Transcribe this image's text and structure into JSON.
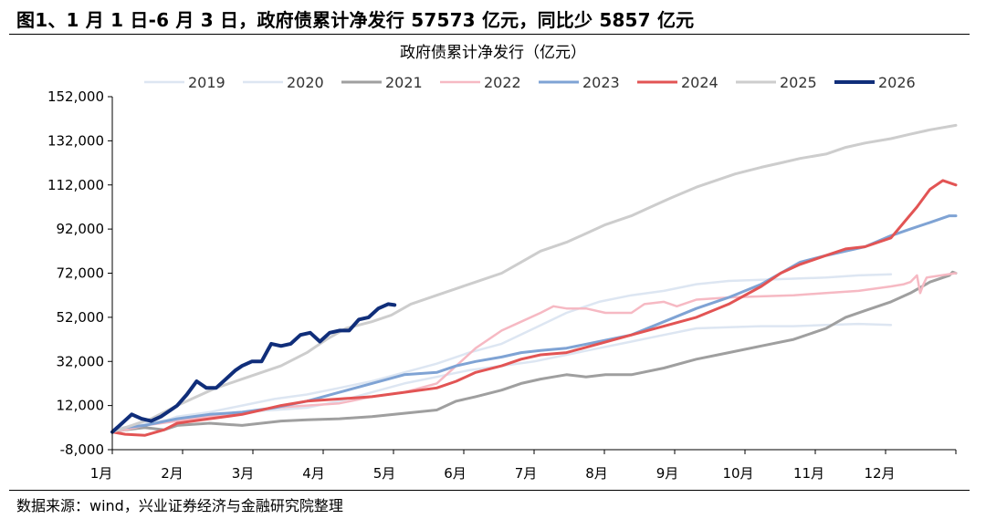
{
  "figure": {
    "title": "图1、1 月 1 日-6 月 3 日，政府债累计净发行 57573 亿元，同比少 5857 亿元",
    "source": "数据来源：wind，兴业证券经济与金融研究院整理"
  },
  "chart_data": {
    "type": "line",
    "title": "政府债累计净发行（亿元）",
    "xlabel": "",
    "ylabel": "",
    "x_tick_labels": [
      "1月",
      "2月",
      "3月",
      "4月",
      "5月",
      "6月",
      "7月",
      "8月",
      "9月",
      "10月",
      "11月",
      "12月"
    ],
    "x_range_months": [
      0,
      12
    ],
    "ylim": [
      -8000,
      152000
    ],
    "y_ticks": [
      -8000,
      12000,
      32000,
      52000,
      72000,
      92000,
      112000,
      132000,
      152000
    ],
    "y_tick_labels": [
      "-8,000",
      "12,000",
      "32,000",
      "52,000",
      "72,000",
      "92,000",
      "112,000",
      "132,000",
      "152,000"
    ],
    "grid": false,
    "legend_position": "top",
    "series": [
      {
        "name": "2019",
        "color": "#dde6f2",
        "width": 2.5,
        "points": [
          [
            0.0,
            0
          ],
          [
            0.15,
            2000
          ],
          [
            0.5,
            3000
          ],
          [
            0.8,
            5000
          ],
          [
            1.0,
            7000
          ],
          [
            1.5,
            9000
          ],
          [
            2.0,
            12000
          ],
          [
            2.5,
            15000
          ],
          [
            3.0,
            17000
          ],
          [
            3.5,
            20000
          ],
          [
            4.0,
            23000
          ],
          [
            4.5,
            27000
          ],
          [
            5.0,
            31000
          ],
          [
            5.5,
            36000
          ],
          [
            6.0,
            40000
          ],
          [
            6.5,
            47000
          ],
          [
            7.0,
            54000
          ],
          [
            7.5,
            59000
          ],
          [
            8.0,
            62000
          ],
          [
            8.5,
            64000
          ],
          [
            9.0,
            67000
          ],
          [
            9.5,
            68500
          ],
          [
            10.0,
            69000
          ],
          [
            10.5,
            69500
          ],
          [
            11.0,
            70000
          ],
          [
            11.5,
            71000
          ],
          [
            12.0,
            71500
          ]
        ]
      },
      {
        "name": "2020",
        "color": "#dde6f2",
        "width": 2.5,
        "points": [
          [
            0.0,
            0
          ],
          [
            0.2,
            2000
          ],
          [
            0.5,
            4000
          ],
          [
            1.0,
            6000
          ],
          [
            1.5,
            7000
          ],
          [
            2.0,
            9000
          ],
          [
            2.5,
            10000
          ],
          [
            3.0,
            11000
          ],
          [
            3.5,
            14000
          ],
          [
            4.0,
            18000
          ],
          [
            4.5,
            22000
          ],
          [
            5.0,
            25000
          ],
          [
            5.5,
            28000
          ],
          [
            6.0,
            30000
          ],
          [
            6.5,
            32000
          ],
          [
            7.0,
            35000
          ],
          [
            7.5,
            38000
          ],
          [
            8.0,
            41000
          ],
          [
            8.5,
            44000
          ],
          [
            9.0,
            47000
          ],
          [
            9.5,
            47500
          ],
          [
            10.0,
            48000
          ],
          [
            10.5,
            48000
          ],
          [
            11.0,
            48500
          ],
          [
            11.5,
            49000
          ],
          [
            12.0,
            48500
          ]
        ]
      },
      {
        "name": "2021",
        "color": "#9f9f9f",
        "width": 3,
        "points": [
          [
            0.0,
            0
          ],
          [
            0.2,
            1000
          ],
          [
            0.5,
            2000
          ],
          [
            0.8,
            1000
          ],
          [
            1.0,
            3000
          ],
          [
            1.5,
            4000
          ],
          [
            2.0,
            3000
          ],
          [
            2.3,
            4000
          ],
          [
            2.6,
            5000
          ],
          [
            3.0,
            5500
          ],
          [
            3.5,
            6000
          ],
          [
            4.0,
            7000
          ],
          [
            4.5,
            8500
          ],
          [
            5.0,
            10000
          ],
          [
            5.3,
            14000
          ],
          [
            5.6,
            16000
          ],
          [
            6.0,
            19000
          ],
          [
            6.3,
            22000
          ],
          [
            6.6,
            24000
          ],
          [
            6.8,
            25000
          ],
          [
            7.0,
            26000
          ],
          [
            7.3,
            25000
          ],
          [
            7.6,
            26000
          ],
          [
            8.0,
            26000
          ],
          [
            8.5,
            29000
          ],
          [
            9.0,
            33000
          ],
          [
            9.5,
            36000
          ],
          [
            10.0,
            39000
          ],
          [
            10.5,
            42000
          ],
          [
            11.0,
            47000
          ],
          [
            11.3,
            52000
          ],
          [
            11.6,
            55000
          ],
          [
            12.0,
            59000
          ],
          [
            12.3,
            63000
          ],
          [
            12.6,
            68000
          ],
          [
            12.9,
            71000
          ],
          [
            12.95,
            72500
          ],
          [
            13.0,
            72000
          ]
        ]
      },
      {
        "name": "2022",
        "color": "#f6b9c3",
        "width": 2.5,
        "points": [
          [
            0.0,
            0
          ],
          [
            0.2,
            1000
          ],
          [
            0.5,
            3000
          ],
          [
            1.0,
            5000
          ],
          [
            1.5,
            7000
          ],
          [
            2.0,
            9000
          ],
          [
            2.5,
            11000
          ],
          [
            3.0,
            12000
          ],
          [
            3.5,
            13000
          ],
          [
            4.0,
            16000
          ],
          [
            4.5,
            18000
          ],
          [
            5.0,
            22000
          ],
          [
            5.3,
            30000
          ],
          [
            5.6,
            38000
          ],
          [
            6.0,
            46000
          ],
          [
            6.3,
            50000
          ],
          [
            6.6,
            54000
          ],
          [
            6.8,
            57000
          ],
          [
            7.0,
            56000
          ],
          [
            7.3,
            56000
          ],
          [
            7.6,
            54000
          ],
          [
            8.0,
            54000
          ],
          [
            8.2,
            58000
          ],
          [
            8.5,
            59000
          ],
          [
            8.7,
            57000
          ],
          [
            9.0,
            60000
          ],
          [
            9.5,
            61000
          ],
          [
            10.0,
            61500
          ],
          [
            10.5,
            62000
          ],
          [
            11.0,
            63000
          ],
          [
            11.5,
            64000
          ],
          [
            12.0,
            66000
          ],
          [
            12.2,
            67000
          ],
          [
            12.3,
            68000
          ],
          [
            12.4,
            71000
          ],
          [
            12.45,
            63000
          ],
          [
            12.5,
            67000
          ],
          [
            12.55,
            70000
          ],
          [
            13.0,
            72000
          ]
        ]
      },
      {
        "name": "2023",
        "color": "#7fa3d4",
        "width": 3,
        "points": [
          [
            0.0,
            0
          ],
          [
            0.2,
            2000
          ],
          [
            0.5,
            3000
          ],
          [
            1.0,
            6000
          ],
          [
            1.5,
            8000
          ],
          [
            2.0,
            9000
          ],
          [
            2.5,
            11000
          ],
          [
            3.0,
            14000
          ],
          [
            3.5,
            18000
          ],
          [
            4.0,
            22000
          ],
          [
            4.5,
            26000
          ],
          [
            5.0,
            27000
          ],
          [
            5.3,
            30000
          ],
          [
            5.6,
            32000
          ],
          [
            6.0,
            34000
          ],
          [
            6.3,
            36000
          ],
          [
            6.6,
            37000
          ],
          [
            7.0,
            38000
          ],
          [
            7.5,
            41000
          ],
          [
            8.0,
            44000
          ],
          [
            8.5,
            50000
          ],
          [
            9.0,
            56000
          ],
          [
            9.5,
            61000
          ],
          [
            10.0,
            67000
          ],
          [
            10.3,
            72000
          ],
          [
            10.6,
            77000
          ],
          [
            11.0,
            80000
          ],
          [
            11.3,
            82000
          ],
          [
            11.6,
            84000
          ],
          [
            12.0,
            89000
          ],
          [
            12.3,
            92000
          ],
          [
            12.6,
            95000
          ],
          [
            12.9,
            98000
          ],
          [
            13.0,
            98000
          ]
        ]
      },
      {
        "name": "2024",
        "color": "#e25454",
        "width": 3,
        "points": [
          [
            0.0,
            0
          ],
          [
            0.2,
            -1000
          ],
          [
            0.5,
            -1500
          ],
          [
            0.8,
            1000
          ],
          [
            1.0,
            4000
          ],
          [
            1.5,
            6000
          ],
          [
            2.0,
            8000
          ],
          [
            2.3,
            10000
          ],
          [
            2.6,
            12000
          ],
          [
            3.0,
            14000
          ],
          [
            3.5,
            15000
          ],
          [
            4.0,
            16000
          ],
          [
            4.5,
            18000
          ],
          [
            5.0,
            20000
          ],
          [
            5.3,
            23000
          ],
          [
            5.6,
            27000
          ],
          [
            6.0,
            30000
          ],
          [
            6.3,
            33000
          ],
          [
            6.6,
            35000
          ],
          [
            7.0,
            36000
          ],
          [
            7.5,
            40000
          ],
          [
            8.0,
            44000
          ],
          [
            8.5,
            48000
          ],
          [
            9.0,
            52000
          ],
          [
            9.5,
            58000
          ],
          [
            10.0,
            66000
          ],
          [
            10.3,
            72000
          ],
          [
            10.6,
            76000
          ],
          [
            11.0,
            80000
          ],
          [
            11.3,
            83000
          ],
          [
            11.6,
            84000
          ],
          [
            12.0,
            88000
          ],
          [
            12.2,
            95000
          ],
          [
            12.4,
            102000
          ],
          [
            12.6,
            110000
          ],
          [
            12.8,
            114000
          ],
          [
            13.0,
            112000
          ]
        ]
      },
      {
        "name": "2025",
        "color": "#cdcdcd",
        "width": 3,
        "points": [
          [
            0.0,
            0
          ],
          [
            0.3,
            3000
          ],
          [
            0.6,
            6000
          ],
          [
            1.0,
            12000
          ],
          [
            1.3,
            16000
          ],
          [
            1.6,
            20000
          ],
          [
            2.0,
            24000
          ],
          [
            2.3,
            27000
          ],
          [
            2.6,
            30000
          ],
          [
            3.0,
            36000
          ],
          [
            3.3,
            42000
          ],
          [
            3.6,
            47000
          ],
          [
            4.0,
            50000
          ],
          [
            4.3,
            53000
          ],
          [
            4.6,
            58000
          ],
          [
            5.0,
            62000
          ],
          [
            5.3,
            65000
          ],
          [
            5.6,
            68000
          ],
          [
            6.0,
            72000
          ],
          [
            6.3,
            77000
          ],
          [
            6.6,
            82000
          ],
          [
            7.0,
            86000
          ],
          [
            7.3,
            90000
          ],
          [
            7.6,
            94000
          ],
          [
            8.0,
            98000
          ],
          [
            8.3,
            102000
          ],
          [
            8.6,
            106000
          ],
          [
            9.0,
            111000
          ],
          [
            9.3,
            114000
          ],
          [
            9.6,
            117000
          ],
          [
            10.0,
            120000
          ],
          [
            10.3,
            122000
          ],
          [
            10.6,
            124000
          ],
          [
            11.0,
            126000
          ],
          [
            11.3,
            129000
          ],
          [
            11.6,
            131000
          ],
          [
            12.0,
            133000
          ],
          [
            12.3,
            135000
          ],
          [
            12.6,
            137000
          ],
          [
            13.0,
            139000
          ]
        ]
      },
      {
        "name": "2026",
        "color": "#102e7a",
        "width": 4,
        "points": [
          [
            0.0,
            0
          ],
          [
            0.15,
            4000
          ],
          [
            0.3,
            8000
          ],
          [
            0.45,
            6000
          ],
          [
            0.6,
            5000
          ],
          [
            0.75,
            7000
          ],
          [
            0.9,
            10000
          ],
          [
            1.0,
            12000
          ],
          [
            1.15,
            17000
          ],
          [
            1.3,
            23000
          ],
          [
            1.45,
            20000
          ],
          [
            1.6,
            20000
          ],
          [
            1.75,
            24000
          ],
          [
            1.9,
            28000
          ],
          [
            2.0,
            30000
          ],
          [
            2.15,
            32000
          ],
          [
            2.3,
            32000
          ],
          [
            2.45,
            40000
          ],
          [
            2.6,
            39000
          ],
          [
            2.75,
            40000
          ],
          [
            2.9,
            44000
          ],
          [
            3.05,
            45000
          ],
          [
            3.2,
            41000
          ],
          [
            3.35,
            45000
          ],
          [
            3.5,
            46000
          ],
          [
            3.65,
            46000
          ],
          [
            3.8,
            51000
          ],
          [
            3.95,
            52000
          ],
          [
            4.1,
            56000
          ],
          [
            4.25,
            58000
          ],
          [
            4.35,
            57573
          ]
        ]
      }
    ]
  }
}
